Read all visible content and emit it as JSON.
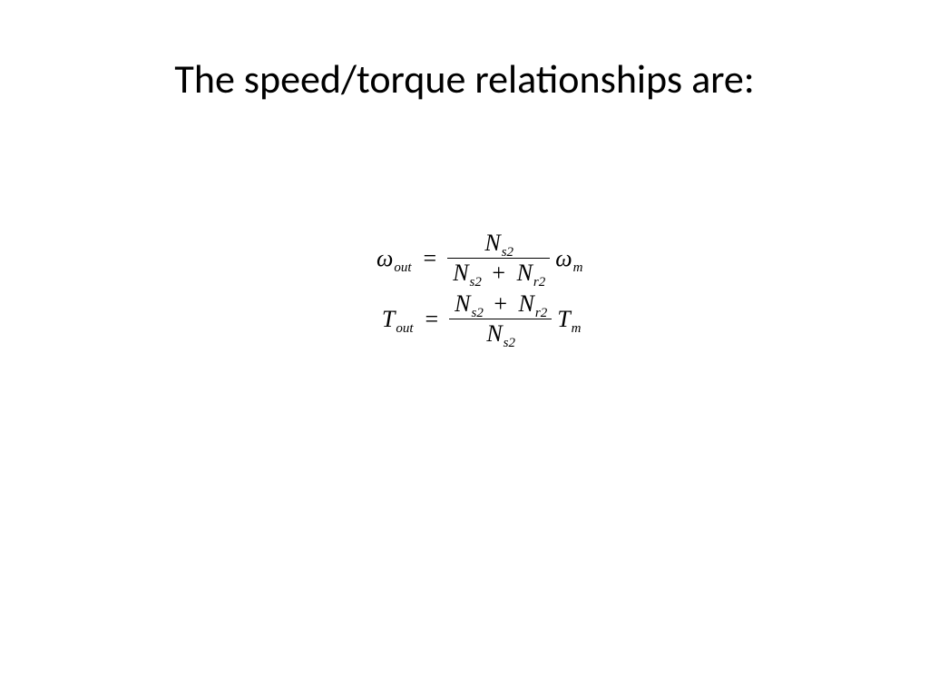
{
  "slide": {
    "title": "The speed/torque relationships are:",
    "title_fontsize": 44,
    "title_color": "#000000",
    "background_color": "#ffffff",
    "equations": {
      "font_family": "Times New Roman",
      "base_fontsize": 26,
      "subscript_fontsize": 15,
      "color": "#000000",
      "fraction_rule_thickness": 1.5,
      "rows": [
        {
          "lhs_symbol": "ω",
          "lhs_subscript": "out",
          "numerator": {
            "terms": [
              {
                "sym": "N",
                "sub": "s2"
              }
            ]
          },
          "denominator": {
            "terms": [
              {
                "sym": "N",
                "sub": "s2"
              },
              {
                "op": "+"
              },
              {
                "sym": "N",
                "sub": "r2"
              }
            ]
          },
          "trailing_symbol": "ω",
          "trailing_subscript": "m"
        },
        {
          "lhs_symbol": "T",
          "lhs_subscript": "out",
          "numerator": {
            "terms": [
              {
                "sym": "N",
                "sub": "s2"
              },
              {
                "op": "+"
              },
              {
                "sym": "N",
                "sub": "r2"
              }
            ]
          },
          "denominator": {
            "terms": [
              {
                "sym": "N",
                "sub": "s2"
              }
            ]
          },
          "trailing_symbol": "T",
          "trailing_subscript": "m"
        }
      ]
    }
  }
}
